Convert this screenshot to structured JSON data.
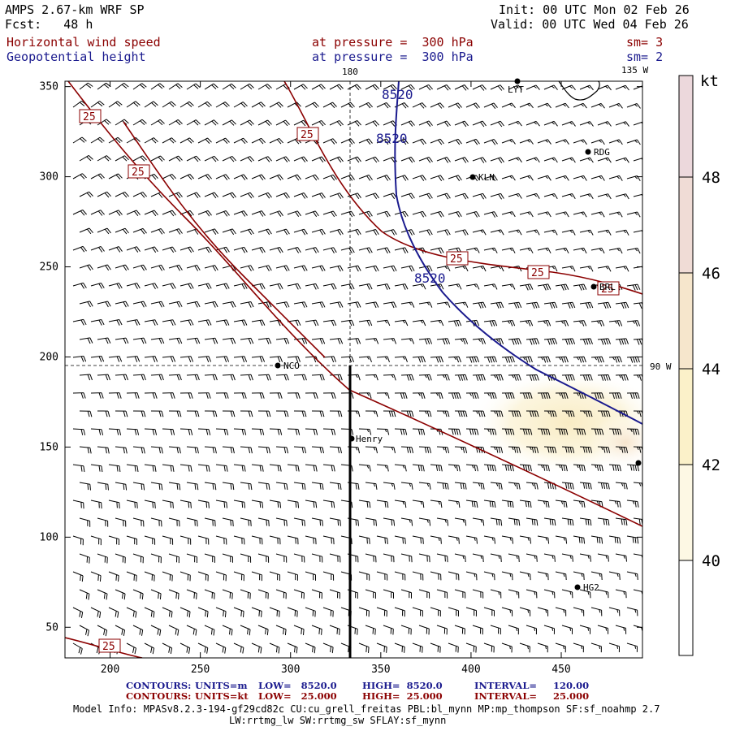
{
  "header": {
    "model": "AMPS 2.67-km WRF SP",
    "fcst": "Fcst:   48 h",
    "init": "Init: 00 UTC Mon 02 Feb 26",
    "valid": "Valid: 00 UTC Wed 04 Feb 26",
    "field1_name": "Horizontal wind speed",
    "field1_level": "at pressure =  300 hPa",
    "field1_sm": "sm= 3",
    "field2_name": "Geopotential height",
    "field2_level": "at pressure =  300 hPa",
    "field2_sm": "sm= 2"
  },
  "map_labels": {
    "lon_180": "180",
    "lon_135w": "135 W",
    "lon_90w": "90 W",
    "stations": [
      "LYT",
      "RDG",
      "KLN",
      "BRL",
      "NCO",
      "Henry",
      "HG2"
    ]
  },
  "chart_data": {
    "type": "contour",
    "title": "Horizontal wind speed / Geopotential height at 300 hPa",
    "x_ticks": [
      200,
      250,
      300,
      350,
      400,
      450
    ],
    "y_ticks": [
      50,
      100,
      150,
      200,
      250,
      300,
      350
    ],
    "xlim": [
      175,
      495
    ],
    "ylim": [
      33,
      353
    ],
    "wind_contour_label": "25",
    "height_contour_label": "8520",
    "colorbar": {
      "unit": "kt",
      "ticks": [
        40,
        42,
        44,
        46,
        48
      ],
      "colors": [
        "#ffffff",
        "#fdf8e4",
        "#fbf1c9",
        "#f6e6cc",
        "#f0dcd6",
        "#ecd8dc"
      ]
    },
    "cross_section_x": 334,
    "cross_section_y": [
      33,
      196
    ]
  },
  "footer": {
    "c1_label": "CONTOURS:",
    "c1_units": "UNITS=m",
    "c1_low": "LOW=   8520.0",
    "c1_high": "HIGH=  8520.0",
    "c1_interval": "INTERVAL=     120.00",
    "c2_label": "CONTOURS:",
    "c2_units": "UNITS=kt",
    "c2_low": "LOW=   25.000",
    "c2_high": "HIGH=  25.000",
    "c2_interval": "INTERVAL=     25.000",
    "info1": "Model Info: MPASv8.2.3-194-gf29cd82c CU:cu_grell_freitas PBL:bl_mynn MP:mp_thompson SF:sf_noahmp 2.7",
    "info2": "LW:rrtmg_lw SW:rrtmg_sw SFLAY:sf_mynn"
  }
}
